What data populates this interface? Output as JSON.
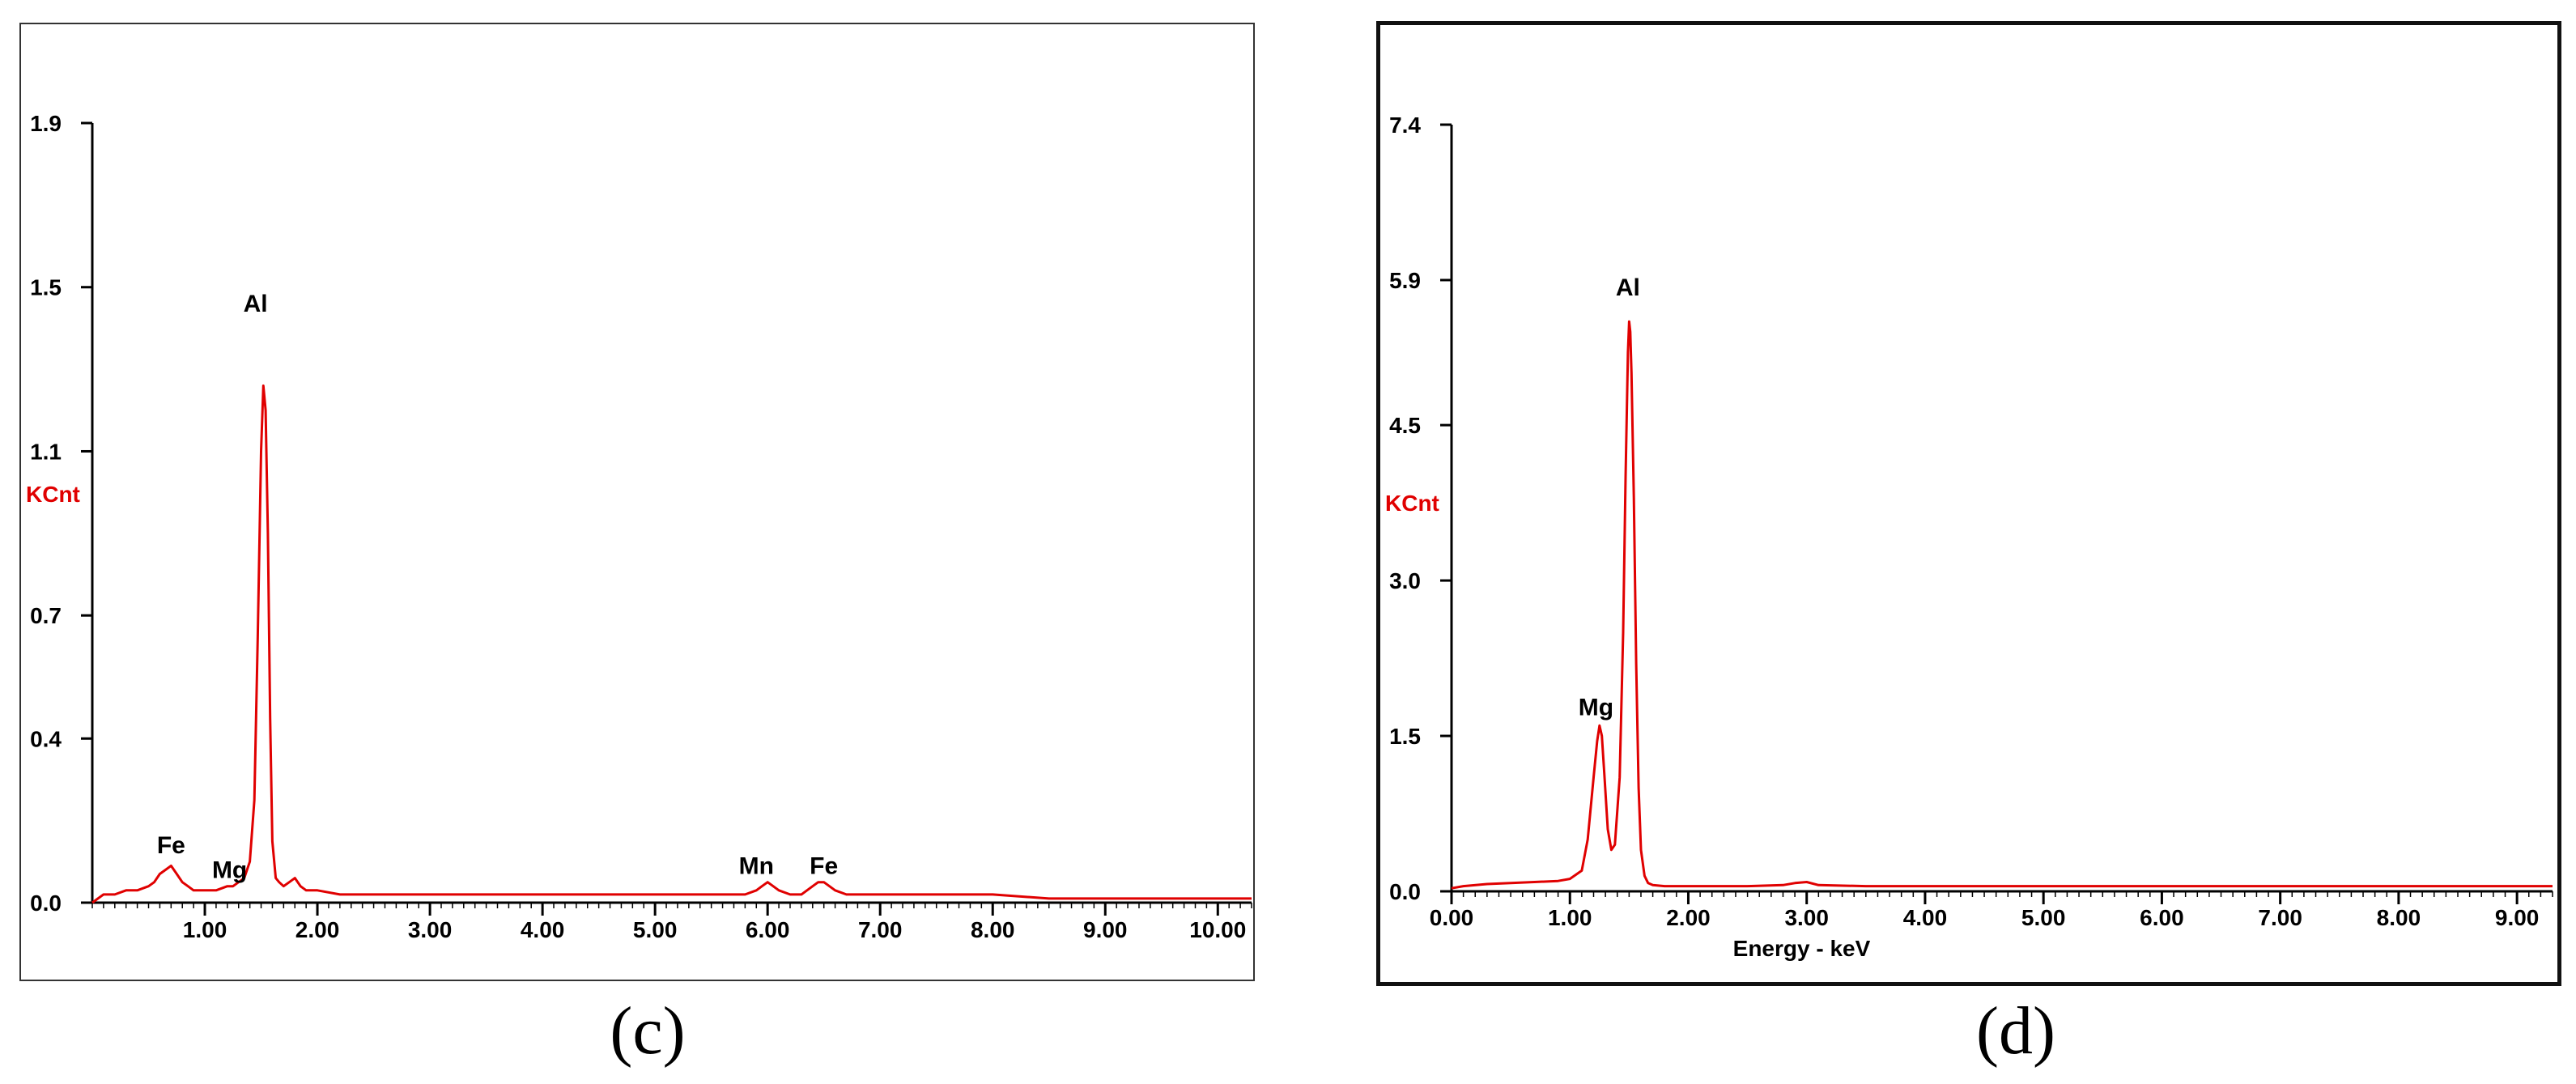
{
  "chart_data": [
    {
      "id": "c",
      "type": "line",
      "caption": "(c)",
      "ylabel": "KCnt",
      "xlabel": "",
      "xlim": [
        0.0,
        10.3
      ],
      "ylim": [
        0.0,
        1.9
      ],
      "x_ticks": [
        1.0,
        2.0,
        3.0,
        4.0,
        5.0,
        6.0,
        7.0,
        8.0,
        9.0,
        10.0
      ],
      "x_tick_labels": [
        "1.00",
        "2.00",
        "3.00",
        "4.00",
        "5.00",
        "6.00",
        "7.00",
        "8.00",
        "9.00",
        "10.00"
      ],
      "y_ticks": [
        0.0,
        0.4,
        0.7,
        1.1,
        1.5,
        1.9
      ],
      "y_tick_labels": [
        "0.0",
        "0.4",
        "0.7",
        "1.1",
        "1.5",
        "1.9"
      ],
      "series_color": "#e00000",
      "x": [
        0.0,
        0.1,
        0.2,
        0.3,
        0.4,
        0.5,
        0.55,
        0.6,
        0.65,
        0.7,
        0.75,
        0.8,
        0.85,
        0.9,
        1.0,
        1.1,
        1.2,
        1.25,
        1.3,
        1.35,
        1.4,
        1.44,
        1.47,
        1.5,
        1.52,
        1.54,
        1.56,
        1.58,
        1.6,
        1.63,
        1.66,
        1.7,
        1.75,
        1.8,
        1.85,
        1.9,
        2.0,
        2.2,
        2.5,
        3.0,
        3.5,
        4.0,
        4.5,
        5.0,
        5.5,
        5.8,
        5.9,
        5.95,
        6.0,
        6.05,
        6.1,
        6.2,
        6.3,
        6.4,
        6.45,
        6.5,
        6.55,
        6.6,
        6.7,
        6.8,
        7.0,
        7.5,
        8.0,
        8.5,
        9.0,
        9.5,
        10.0,
        10.3
      ],
      "y": [
        0.0,
        0.02,
        0.02,
        0.03,
        0.03,
        0.04,
        0.05,
        0.07,
        0.08,
        0.09,
        0.07,
        0.05,
        0.04,
        0.03,
        0.03,
        0.03,
        0.04,
        0.04,
        0.05,
        0.06,
        0.1,
        0.25,
        0.65,
        1.1,
        1.26,
        1.2,
        0.9,
        0.45,
        0.15,
        0.06,
        0.05,
        0.04,
        0.05,
        0.06,
        0.04,
        0.03,
        0.03,
        0.02,
        0.02,
        0.02,
        0.02,
        0.02,
        0.02,
        0.02,
        0.02,
        0.02,
        0.03,
        0.04,
        0.05,
        0.04,
        0.03,
        0.02,
        0.02,
        0.04,
        0.05,
        0.05,
        0.04,
        0.03,
        0.02,
        0.02,
        0.02,
        0.02,
        0.02,
        0.01,
        0.01,
        0.01,
        0.01,
        0.01
      ],
      "annotations": [
        {
          "text": "Al",
          "x": 1.45,
          "y": 1.44
        },
        {
          "text": "Fe",
          "x": 0.7,
          "y": 0.12
        },
        {
          "text": "Mg",
          "x": 1.22,
          "y": 0.06
        },
        {
          "text": "Mn",
          "x": 5.9,
          "y": 0.07
        },
        {
          "text": "Fe",
          "x": 6.5,
          "y": 0.07
        }
      ]
    },
    {
      "id": "d",
      "type": "line",
      "caption": "(d)",
      "ylabel": "KCnt",
      "xlabel": "Energy - keV",
      "xlim": [
        0.0,
        9.3
      ],
      "ylim": [
        0.0,
        7.4
      ],
      "x_ticks": [
        0.0,
        1.0,
        2.0,
        3.0,
        4.0,
        5.0,
        6.0,
        7.0,
        8.0,
        9.0
      ],
      "x_tick_labels": [
        "0.00",
        "1.00",
        "2.00",
        "3.00",
        "4.00",
        "5.00",
        "6.00",
        "7.00",
        "8.00",
        "9.00"
      ],
      "y_ticks": [
        0.0,
        1.5,
        3.0,
        4.5,
        5.9,
        7.4
      ],
      "y_tick_labels": [
        "0.0",
        "1.5",
        "3.0",
        "4.5",
        "5.9",
        "7.4"
      ],
      "series_color": "#e00000",
      "x": [
        0.0,
        0.1,
        0.3,
        0.5,
        0.7,
        0.9,
        1.0,
        1.1,
        1.15,
        1.2,
        1.23,
        1.25,
        1.27,
        1.29,
        1.32,
        1.35,
        1.38,
        1.42,
        1.45,
        1.47,
        1.49,
        1.5,
        1.51,
        1.52,
        1.54,
        1.56,
        1.58,
        1.6,
        1.63,
        1.66,
        1.7,
        1.8,
        2.0,
        2.5,
        2.8,
        2.9,
        3.0,
        3.1,
        3.5,
        4.0,
        5.0,
        6.0,
        7.0,
        8.0,
        9.0,
        9.3
      ],
      "y": [
        0.03,
        0.05,
        0.07,
        0.08,
        0.09,
        0.1,
        0.12,
        0.2,
        0.5,
        1.1,
        1.45,
        1.6,
        1.5,
        1.15,
        0.6,
        0.4,
        0.45,
        1.1,
        2.5,
        4.0,
        5.2,
        5.5,
        5.4,
        5.0,
        3.8,
        2.2,
        1.0,
        0.4,
        0.15,
        0.08,
        0.06,
        0.05,
        0.05,
        0.05,
        0.06,
        0.08,
        0.09,
        0.06,
        0.05,
        0.05,
        0.05,
        0.05,
        0.05,
        0.05,
        0.05,
        0.05
      ],
      "annotations": [
        {
          "text": "Al",
          "x": 1.49,
          "y": 5.75
        },
        {
          "text": "Mg",
          "x": 1.22,
          "y": 1.7
        }
      ]
    }
  ]
}
